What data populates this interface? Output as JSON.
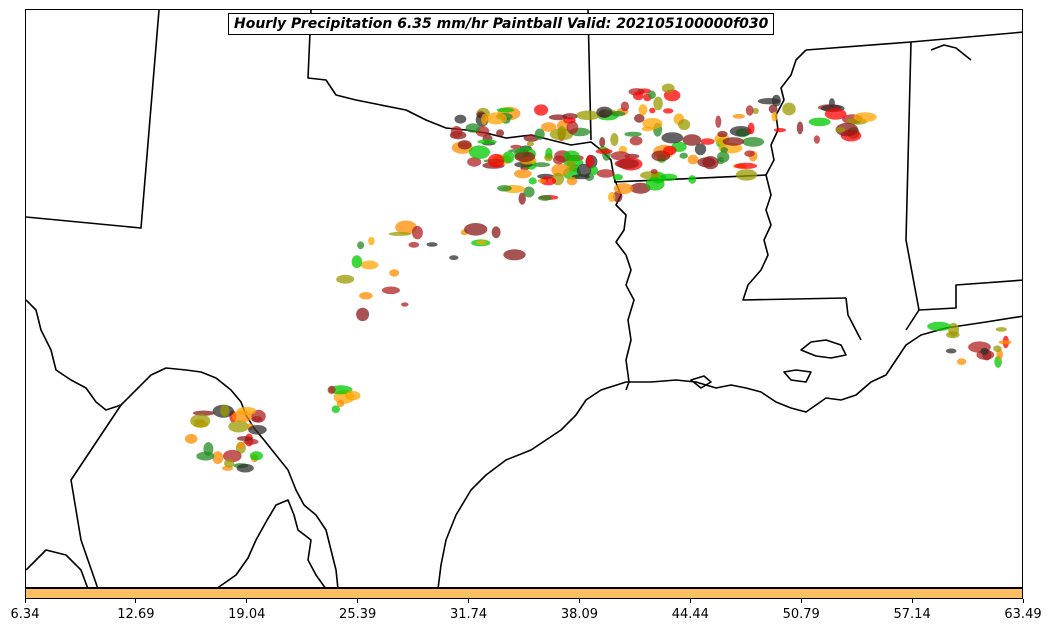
{
  "title": "Hourly Precipitation 6.35 mm/hr Paintball Valid: 202105100000f030",
  "colorbar": {
    "color": "#fdbf63",
    "min": 6.34,
    "max": 63.49,
    "ticks": [
      "6.34",
      "12.69",
      "19.04",
      "25.39",
      "31.74",
      "38.09",
      "44.44",
      "50.79",
      "57.14",
      "63.49"
    ]
  },
  "member_colors": [
    "#8b1a1a",
    "#ff8c00",
    "#ff0000",
    "#00c800",
    "#228b22",
    "#9a9a00",
    "#2f2f2f",
    "#ffa500",
    "#b22222"
  ],
  "map": {
    "region": "south-central-us",
    "land_color": "#ffffff",
    "boundary_color": "#000000"
  }
}
